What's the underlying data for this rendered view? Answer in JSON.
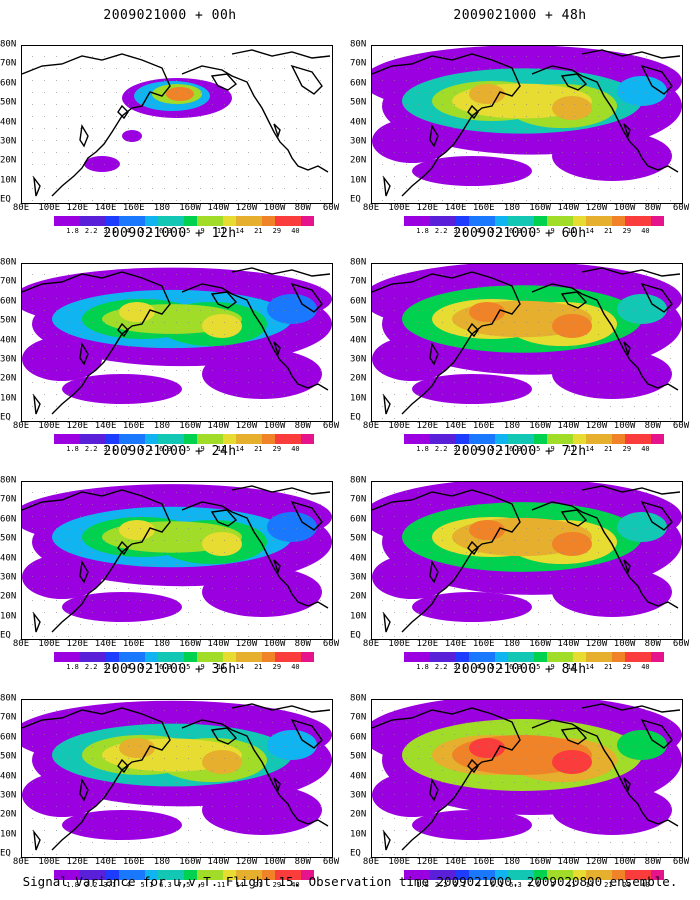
{
  "caption": "Signal Variance for u,v,T. Flight 15. Observation time 2009021000. 2009020800 ensemble.",
  "lat_labels": [
    "80N",
    "70N",
    "60N",
    "50N",
    "40N",
    "30N",
    "20N",
    "10N",
    "EQ"
  ],
  "lon_labels": [
    "80E",
    "100E",
    "120E",
    "140E",
    "160E",
    "180",
    "160W",
    "140W",
    "120W",
    "100W",
    "80W",
    "60W"
  ],
  "colorbar": {
    "levels": [
      "1.8",
      "2.2",
      "3.1",
      "4",
      "5.1",
      "6.3",
      "7.5",
      "9",
      "11",
      "14",
      "21",
      "29",
      "40"
    ],
    "colors": [
      "#9b00e0",
      "#5a1fd8",
      "#1e3cff",
      "#1a78ff",
      "#10b4f0",
      "#12c8b4",
      "#00d250",
      "#a0dc28",
      "#e6dc32",
      "#e6af2d",
      "#f08228",
      "#fa3c3c",
      "#e6148c"
    ]
  },
  "panels": [
    {
      "title": "2009021000 + 00h",
      "lead_hours": 0
    },
    {
      "title": "2009021000 + 48h",
      "lead_hours": 48
    },
    {
      "title": "2009021000 + 12h",
      "lead_hours": 12
    },
    {
      "title": "2009021000 + 60h",
      "lead_hours": 60
    },
    {
      "title": "2009021000 + 24h",
      "lead_hours": 24
    },
    {
      "title": "2009021000 + 72h",
      "lead_hours": 72
    },
    {
      "title": "2009021000 + 36h",
      "lead_hours": 36
    },
    {
      "title": "2009021000 + 84h",
      "lead_hours": 84
    }
  ]
}
